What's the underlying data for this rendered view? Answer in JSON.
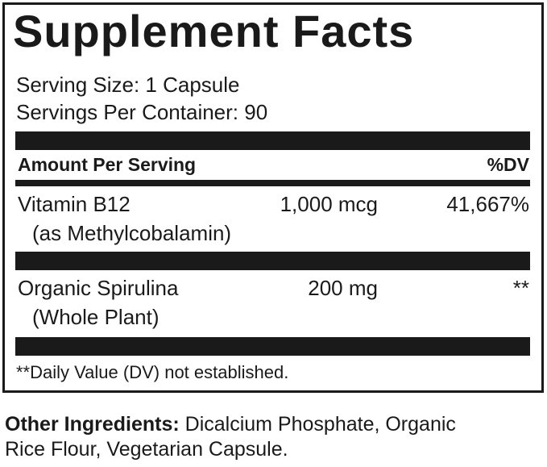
{
  "title": "Supplement Facts",
  "serving_size": "Serving Size: 1 Capsule",
  "servings_per_container": "Servings Per Container: 90",
  "header": {
    "amount": "Amount Per Serving",
    "dv": "%DV"
  },
  "rows": [
    {
      "name": "Vitamin B12",
      "sub": "(as Methylcobalamin)",
      "amount": "1,000 mcg",
      "dv": "41,667%"
    },
    {
      "name": "Organic Spirulina",
      "sub": "(Whole Plant)",
      "amount": "200 mg",
      "dv": "**"
    }
  ],
  "footnote": "**Daily Value (DV) not established.",
  "other": {
    "label": "Other Ingredients:",
    "text": " Dicalcium Phosphate, Organic",
    "text2": "Rice Flour, Vegetarian Capsule."
  }
}
